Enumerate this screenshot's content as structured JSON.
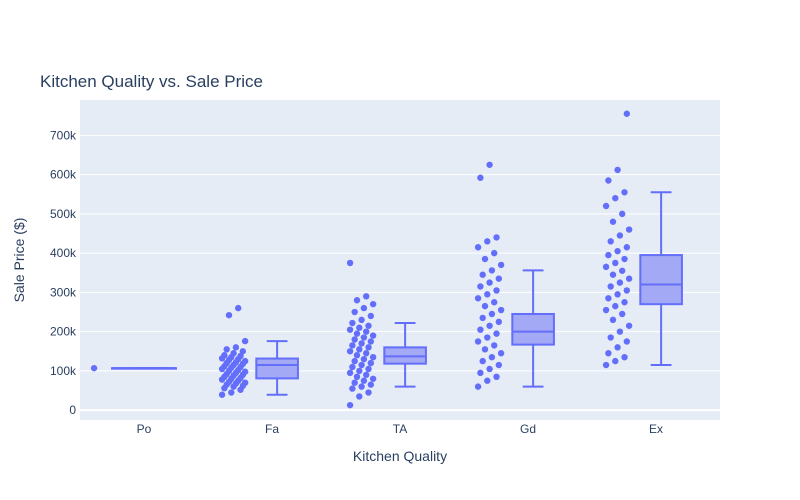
{
  "chart_data": {
    "type": "box",
    "title": "Kitchen Quality vs. Sale Price",
    "xlabel": "Kitchen Quality",
    "ylabel": "Sale Price ($)",
    "ylim": [
      -25000,
      790000
    ],
    "yticks": [
      0,
      100000,
      200000,
      300000,
      400000,
      500000,
      600000,
      700000
    ],
    "ytick_labels": [
      "0",
      "100k",
      "200k",
      "300k",
      "400k",
      "500k",
      "600k",
      "700k"
    ],
    "categories": [
      "Po",
      "Fa",
      "TA",
      "Gd",
      "Ex"
    ],
    "grid": true,
    "legend": "none",
    "colors": {
      "plot_bg": "#e5ecf6",
      "marker": "#636efa",
      "box_fill": "#a4a9f5",
      "grid": "#ffffff",
      "text": "#2a3f5f"
    },
    "boxes": [
      {
        "category": "Po",
        "min": 107000,
        "q1": 107000,
        "median": 107000,
        "q3": 107000,
        "max": 107000,
        "points": [
          107000
        ]
      },
      {
        "category": "Fa",
        "min": 39300,
        "q1": 81000,
        "median": 115000,
        "q3": 131500,
        "max": 176000,
        "points": [
          39300,
          45000,
          52000,
          56000,
          60000,
          62000,
          65000,
          68000,
          70000,
          72000,
          75000,
          78000,
          80000,
          82000,
          85000,
          88000,
          90000,
          92000,
          95000,
          98000,
          100000,
          102000,
          105000,
          108000,
          110000,
          112000,
          115000,
          118000,
          120000,
          122000,
          125000,
          128000,
          130000,
          132000,
          135000,
          138000,
          140000,
          145000,
          150000,
          155000,
          160000,
          176000,
          242000,
          260000
        ]
      },
      {
        "category": "TA",
        "min": 60000,
        "q1": 118500,
        "median": 137000,
        "q3": 160000,
        "max": 222000,
        "points": [
          12789,
          35000,
          45000,
          55000,
          60000,
          65000,
          70000,
          75000,
          80000,
          85000,
          90000,
          95000,
          100000,
          105000,
          110000,
          115000,
          120000,
          125000,
          130000,
          135000,
          140000,
          145000,
          150000,
          155000,
          160000,
          165000,
          170000,
          175000,
          180000,
          185000,
          190000,
          195000,
          200000,
          205000,
          210000,
          215000,
          222000,
          230000,
          240000,
          250000,
          260000,
          270000,
          280000,
          290000,
          375000
        ]
      },
      {
        "category": "Gd",
        "min": 60000,
        "q1": 167000,
        "median": 200000,
        "q3": 245000,
        "max": 356000,
        "points": [
          60000,
          75000,
          85000,
          95000,
          105000,
          115000,
          125000,
          135000,
          145000,
          155000,
          165000,
          175000,
          185000,
          195000,
          205000,
          215000,
          225000,
          235000,
          245000,
          255000,
          265000,
          275000,
          285000,
          295000,
          305000,
          315000,
          325000,
          335000,
          345000,
          356000,
          370000,
          385000,
          400000,
          415000,
          430000,
          440000,
          592000,
          625000
        ]
      },
      {
        "category": "Ex",
        "min": 115000,
        "q1": 270000,
        "median": 320000,
        "q3": 395000,
        "max": 555000,
        "points": [
          115000,
          125000,
          135000,
          145000,
          160000,
          175000,
          185000,
          200000,
          215000,
          230000,
          245000,
          255000,
          265000,
          275000,
          285000,
          295000,
          305000,
          315000,
          325000,
          335000,
          345000,
          355000,
          365000,
          375000,
          385000,
          395000,
          405000,
          415000,
          430000,
          445000,
          460000,
          480000,
          500000,
          520000,
          540000,
          555000,
          585000,
          612000,
          755000
        ]
      }
    ]
  }
}
